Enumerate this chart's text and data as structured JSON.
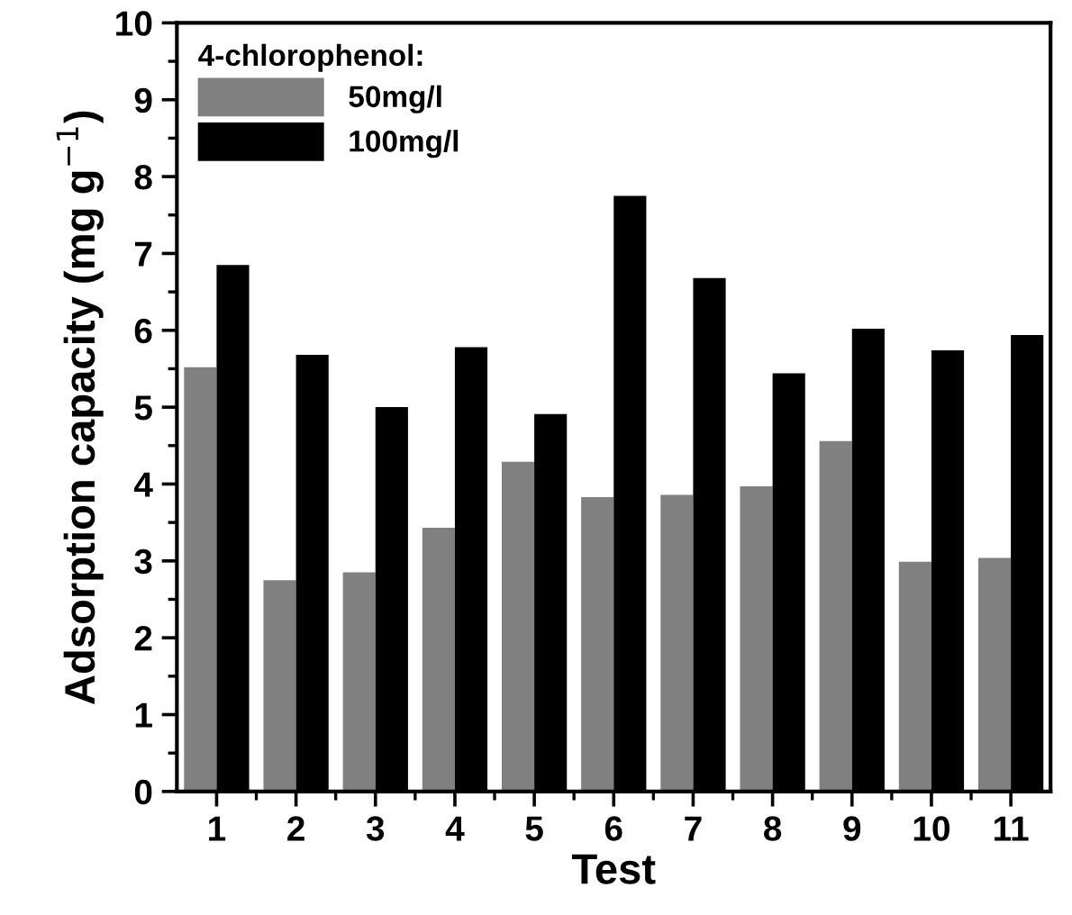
{
  "chart_data": {
    "type": "bar",
    "xlabel": "Test",
    "ylabel": "Adsorption capacity (mg g$^{−1}$)",
    "legend_title": "4-chlorophenol:",
    "categories": [
      "1",
      "2",
      "3",
      "4",
      "5",
      "6",
      "7",
      "8",
      "9",
      "10",
      "11"
    ],
    "series": [
      {
        "name": "50mg/l",
        "color": "#808080",
        "values": [
          5.52,
          2.75,
          2.85,
          3.43,
          4.29,
          3.83,
          3.86,
          3.97,
          4.56,
          2.99,
          3.04
        ]
      },
      {
        "name": "100mg/l",
        "color": "#000000",
        "values": [
          6.85,
          5.68,
          5.0,
          5.78,
          4.91,
          7.75,
          6.68,
          5.44,
          6.02,
          5.74,
          5.94
        ]
      }
    ],
    "ylim": [
      0,
      10
    ],
    "yticks": [
      0,
      1,
      2,
      3,
      4,
      5,
      6,
      7,
      8,
      9,
      10
    ],
    "grid": false,
    "legend": "top left"
  }
}
